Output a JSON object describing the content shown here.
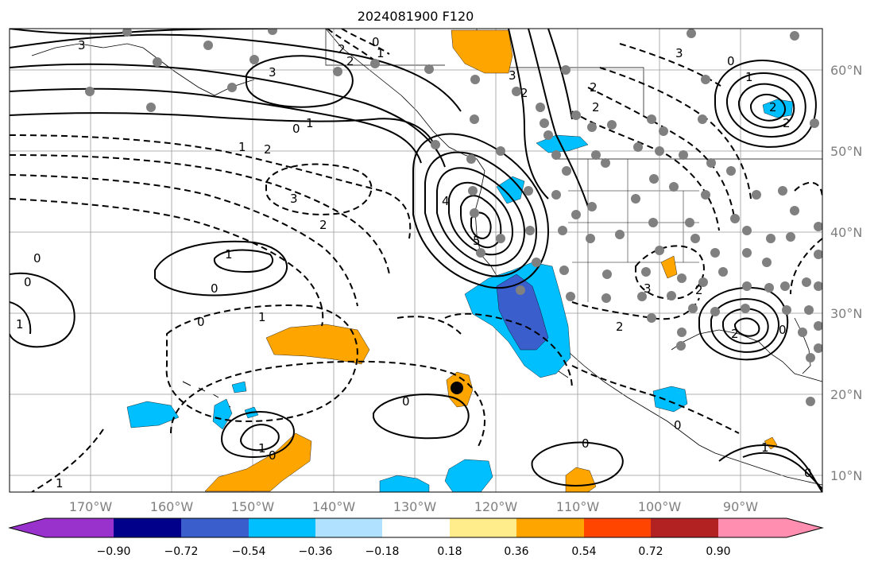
{
  "title": "2024081900 F120",
  "map": {
    "lat_labels": [
      "60°N",
      "50°N",
      "40°N",
      "30°N",
      "20°N",
      "10°N"
    ],
    "lat_values": [
      60,
      50,
      40,
      30,
      20,
      10
    ],
    "lon_labels": [
      "170°W",
      "160°W",
      "150°W",
      "140°W",
      "130°W",
      "120°W",
      "110°W",
      "100°W",
      "90°W"
    ],
    "lon_values": [
      -170,
      -160,
      -150,
      -140,
      -130,
      -120,
      -110,
      -100,
      -90
    ],
    "extent": {
      "lon_min": -180,
      "lon_max": -80,
      "lat_min": 8,
      "lat_max": 65
    },
    "contour_labels": [
      "3",
      "2",
      "2",
      "1",
      "0",
      "3",
      "0",
      "1",
      "1",
      "2",
      "2",
      "2",
      "3",
      "2",
      "3",
      "0",
      "1",
      "2",
      "2",
      "3",
      "2",
      "4",
      "5",
      "1",
      "0",
      "0",
      "1",
      "0",
      "1",
      "0",
      "1",
      "0",
      "0",
      "1",
      "0",
      "2",
      "3",
      "2",
      "2",
      "0",
      "0",
      "1",
      "0"
    ],
    "colors": {
      "contour": "#000000",
      "grid": "#999999",
      "land_outline": "#000000",
      "station_dot": "#808080",
      "marker": "#000000"
    }
  },
  "colorbar": {
    "tick_labels": [
      "−0.90",
      "−0.72",
      "−0.54",
      "−0.36",
      "−0.18",
      "0.18",
      "0.36",
      "0.54",
      "0.72",
      "0.90"
    ],
    "tick_values": [
      -0.9,
      -0.72,
      -0.54,
      -0.36,
      -0.18,
      0.18,
      0.36,
      0.54,
      0.72,
      0.9
    ],
    "colors": [
      "#9932cc",
      "#00008b",
      "#3a5fcd",
      "#00bfff",
      "#b0e2ff",
      "#ffffff",
      "#ffec8b",
      "#ffa500",
      "#ff4500",
      "#b22222",
      "#ff8eb0"
    ]
  },
  "anomaly_regions": [
    {
      "category": 0.36,
      "color": "#ffa500"
    },
    {
      "category": -0.54,
      "color": "#00bfff"
    },
    {
      "category": -0.72,
      "color": "#3a5fcd"
    }
  ]
}
